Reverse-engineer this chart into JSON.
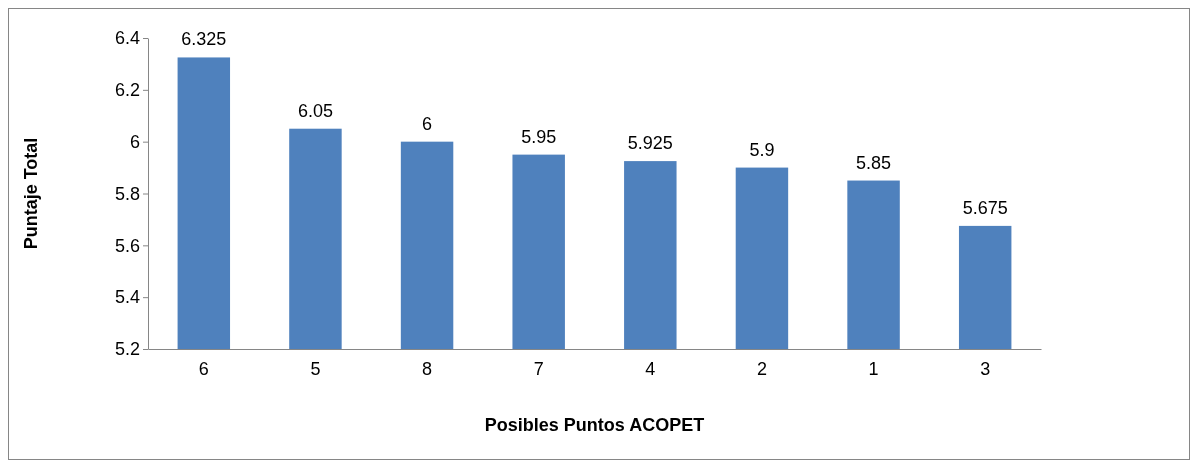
{
  "chart_data": {
    "type": "bar",
    "xlabel": "Posibles Puntos ACOPET",
    "ylabel": "Puntaje Total",
    "categories": [
      "6",
      "5",
      "8",
      "7",
      "4",
      "2",
      "1",
      "3"
    ],
    "values": [
      6.325,
      6.05,
      6,
      5.95,
      5.925,
      5.9,
      5.85,
      5.675
    ],
    "color": "#4f81bd",
    "ylim": [
      5.2,
      6.4
    ],
    "yticks": [
      5.2,
      5.4,
      5.6,
      5.8,
      6,
      6.2,
      6.4
    ],
    "data_labels": true
  }
}
